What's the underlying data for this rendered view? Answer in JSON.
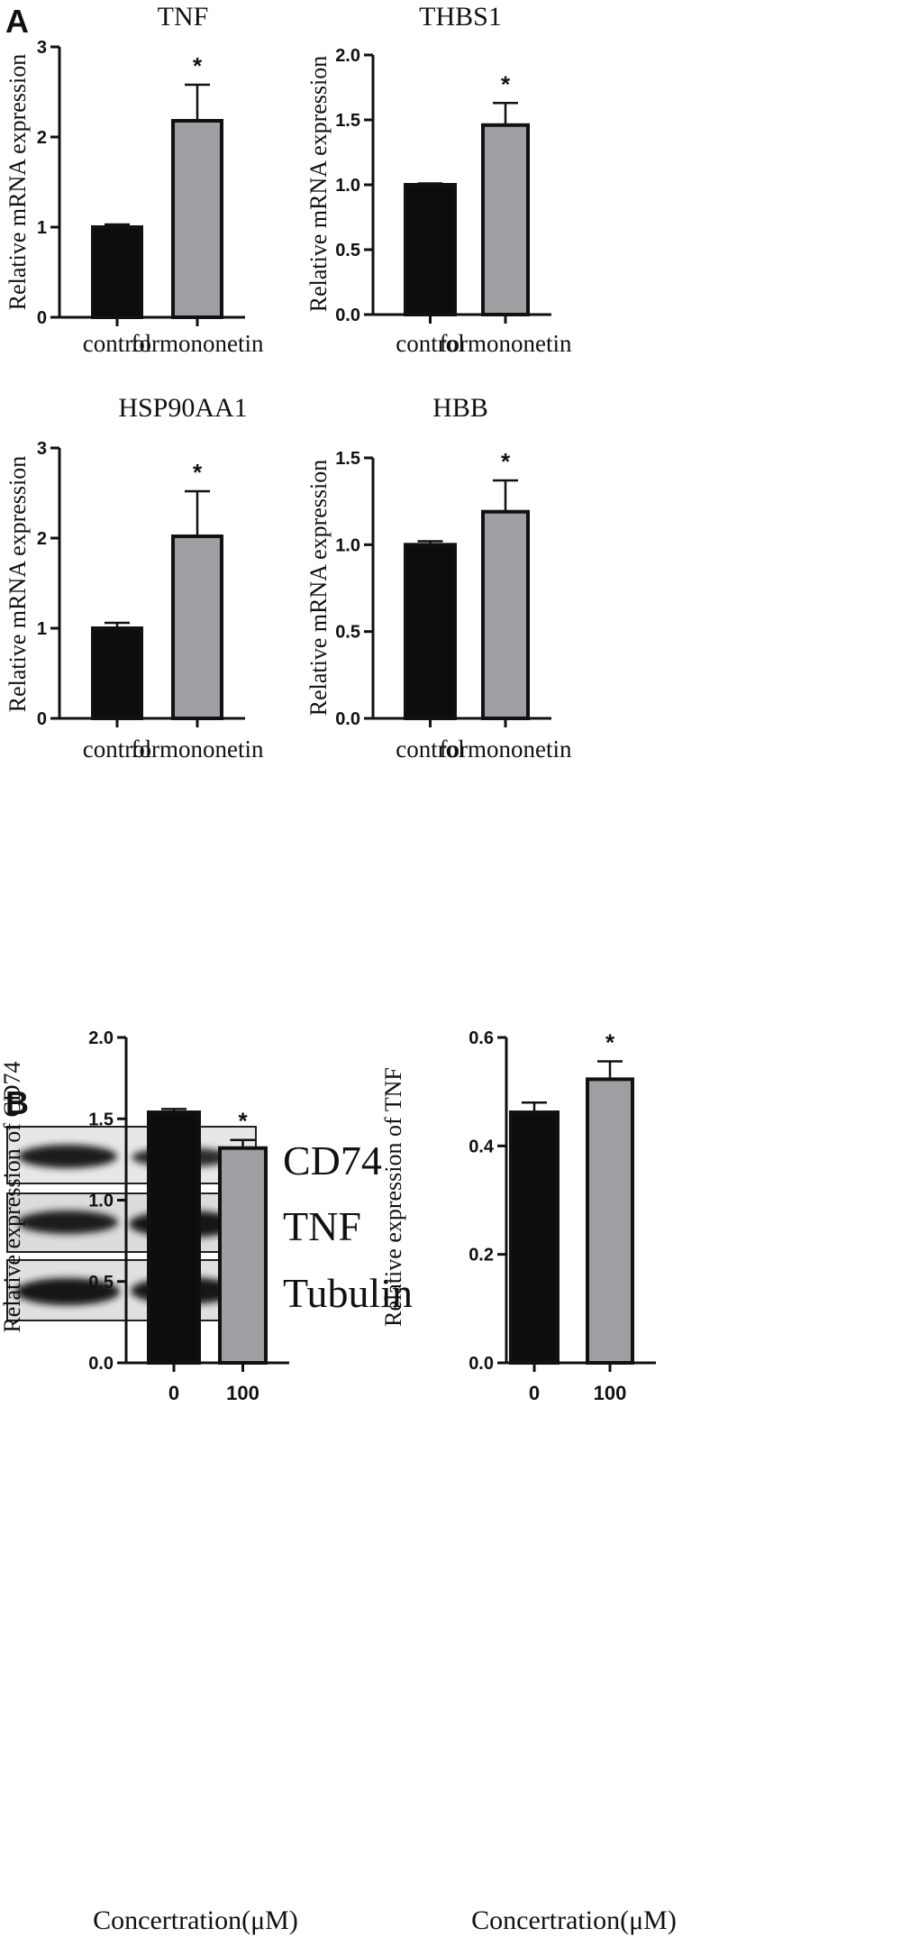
{
  "panel_labels": {
    "a": "A",
    "b": "B"
  },
  "blot": {
    "labels": [
      "CD74",
      "TNF",
      "Tubulin"
    ]
  },
  "colors": {
    "control": "#0d0d0d",
    "treatment": "#9e9ea3",
    "axis": "#111111"
  },
  "chart_data": [
    {
      "type": "bar",
      "title": "TNF",
      "ylabel": "Relative mRNA expression",
      "xlabel": "",
      "categories": [
        "control",
        "formononetin"
      ],
      "values": [
        1.0,
        2.18
      ],
      "error": [
        0.03,
        0.4
      ],
      "significance": [
        "",
        "*"
      ],
      "ylim": [
        0,
        3
      ],
      "yticks": [
        "0",
        "1",
        "2",
        "3"
      ],
      "grid": false
    },
    {
      "type": "bar",
      "title": "THBS1",
      "ylabel": "Relative mRNA expression",
      "xlabel": "",
      "categories": [
        "control",
        "formononetin"
      ],
      "values": [
        1.0,
        1.46
      ],
      "error": [
        0.01,
        0.17
      ],
      "significance": [
        "",
        "*"
      ],
      "ylim": [
        0,
        2
      ],
      "yticks": [
        "0.0",
        "0.5",
        "1.0",
        "1.5",
        "2.0"
      ],
      "grid": false
    },
    {
      "type": "bar",
      "title": "HSP90AA1",
      "ylabel": "Relative mRNA expression",
      "xlabel": "",
      "categories": [
        "control",
        "formononetin"
      ],
      "values": [
        1.0,
        2.02
      ],
      "error": [
        0.06,
        0.5
      ],
      "significance": [
        "",
        "*"
      ],
      "ylim": [
        0,
        3
      ],
      "yticks": [
        "0",
        "1",
        "2",
        "3"
      ],
      "grid": false
    },
    {
      "type": "bar",
      "title": "HBB",
      "ylabel": "Relative mRNA expression",
      "xlabel": "",
      "categories": [
        "control",
        "formononetin"
      ],
      "values": [
        1.0,
        1.19
      ],
      "error": [
        0.02,
        0.18
      ],
      "significance": [
        "",
        "*"
      ],
      "ylim": [
        0,
        1.5
      ],
      "yticks": [
        "0.0",
        "0.5",
        "1.0",
        "1.5"
      ],
      "grid": false
    },
    {
      "type": "bar",
      "title": "",
      "ylabel": "Relative expression of CD74",
      "xlabel": "Concertration(μM)",
      "categories": [
        "0",
        "100"
      ],
      "values": [
        1.54,
        1.32
      ],
      "error": [
        0.02,
        0.05
      ],
      "significance": [
        "",
        "*"
      ],
      "ylim": [
        0,
        2
      ],
      "yticks": [
        "0.0",
        "0.5",
        "1.0",
        "1.5",
        "2.0"
      ],
      "grid": false
    },
    {
      "type": "bar",
      "title": "",
      "ylabel": "Relative expression of TNF",
      "xlabel": "Concertration(μM)",
      "categories": [
        "0",
        "100"
      ],
      "values": [
        0.462,
        0.523
      ],
      "error": [
        0.018,
        0.033
      ],
      "significance": [
        "",
        "*"
      ],
      "ylim": [
        0,
        0.6
      ],
      "yticks": [
        "0.0",
        "0.2",
        "0.4",
        "0.6"
      ],
      "grid": false
    }
  ]
}
